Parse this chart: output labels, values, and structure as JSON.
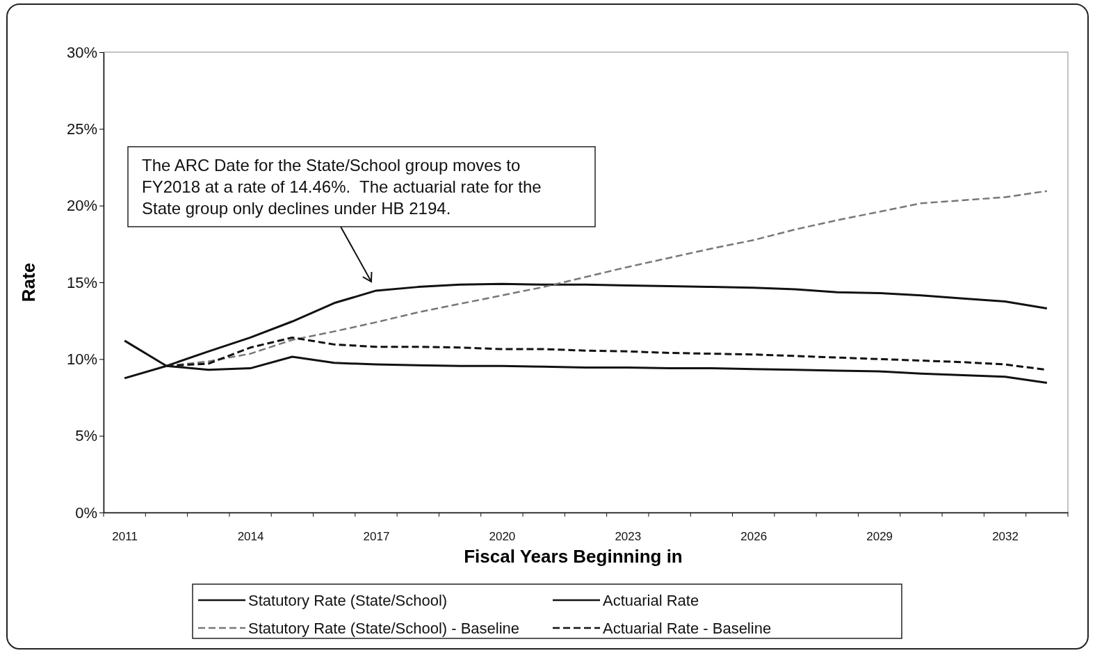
{
  "chart_data": {
    "type": "line",
    "xlabel": "Fiscal Years Beginning in",
    "ylabel": "Rate",
    "categories": [
      "2011",
      null,
      null,
      "2014",
      null,
      null,
      "2017",
      null,
      null,
      "2020",
      null,
      null,
      "2023",
      null,
      null,
      "2026",
      null,
      null,
      "2029",
      null,
      null,
      "2032",
      null
    ],
    "ylim": [
      0,
      30
    ],
    "yticks": [
      {
        "value": 0,
        "label": "0%"
      },
      {
        "value": 5,
        "label": "5%"
      },
      {
        "value": 10,
        "label": "10%"
      },
      {
        "value": 15,
        "label": "15%"
      },
      {
        "value": 20,
        "label": "20%"
      },
      {
        "value": 25,
        "label": "25%"
      },
      {
        "value": 30,
        "label": "30%"
      }
    ],
    "grid": false,
    "legend": "bottom",
    "marker": "none",
    "series": [
      {
        "name": "Statutory Rate (State/School)",
        "color": "#111111",
        "line_style": "solid",
        "values": [
          8.75,
          9.55,
          10.5,
          11.4,
          12.45,
          13.65,
          14.46,
          14.7,
          14.85,
          14.9,
          14.85,
          14.85,
          14.8,
          14.75,
          14.7,
          14.65,
          14.55,
          14.35,
          14.3,
          14.15,
          13.95,
          13.75,
          13.3
        ]
      },
      {
        "name": "Actuarial Rate",
        "color": "#111111",
        "line_style": "solid",
        "values": [
          11.2,
          9.55,
          9.3,
          9.4,
          10.15,
          9.75,
          9.65,
          9.6,
          9.55,
          9.55,
          9.5,
          9.45,
          9.45,
          9.4,
          9.4,
          9.35,
          9.3,
          9.25,
          9.2,
          9.05,
          8.95,
          8.85,
          8.45
        ]
      },
      {
        "name": "Statutory Rate (State/School) - Baseline",
        "color": "#777777",
        "line_style": "dashed",
        "values": [
          null,
          9.55,
          9.85,
          10.35,
          11.25,
          11.8,
          12.4,
          13.05,
          13.6,
          14.15,
          14.7,
          15.35,
          16.0,
          16.6,
          17.2,
          17.75,
          18.45,
          19.05,
          19.6,
          20.15,
          20.35,
          20.55,
          20.95
        ]
      },
      {
        "name": "Actuarial Rate - Baseline",
        "color": "#111111",
        "line_style": "dashed",
        "values": [
          null,
          9.55,
          9.7,
          10.75,
          11.4,
          10.95,
          10.8,
          10.8,
          10.75,
          10.65,
          10.65,
          10.55,
          10.5,
          10.4,
          10.35,
          10.3,
          10.2,
          10.1,
          10.0,
          9.9,
          9.8,
          9.65,
          9.3
        ]
      }
    ],
    "annotations": [
      "The ARC Date for the State/School group moves to FY2018 at a rate of 14.46%.  The actuarial rate for the State group only declines under HB 2194."
    ]
  }
}
